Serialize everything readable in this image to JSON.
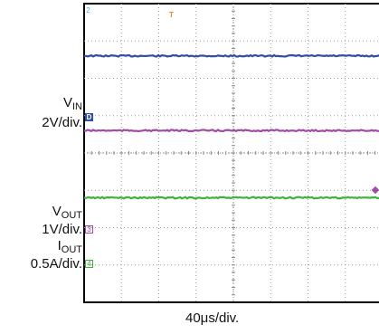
{
  "chart_data": {
    "type": "line",
    "title": "",
    "xlabel": "40μs/div",
    "x_divisions": 8,
    "y_divisions": 8,
    "grid": true,
    "series": [
      {
        "name": "VIN",
        "channel": "D",
        "scale": "2V/div.",
        "color": "#2e4fa3",
        "level_div": 6.6
      },
      {
        "name": "",
        "channel": "",
        "scale": "",
        "color": "#a24aa8",
        "level_div": 4.6
      },
      {
        "name": "VOUT",
        "channel": "3",
        "scale": "1V/div.",
        "color": "#3cb43c",
        "level_div": 2.8
      }
    ]
  },
  "labels": {
    "vin_main": "V",
    "vin_sub": "IN",
    "vin_scale": "2V/div.",
    "vout_main": "V",
    "vout_sub": "OUT",
    "vout_scale": "1V/div.",
    "iout_main": "I",
    "iout_sub": "OUT",
    "iout_scale": "0.5A/div.",
    "x_caption": "40μs/div."
  },
  "markers": {
    "top_channel": "2",
    "trigger": "T",
    "vin_channel": "D",
    "vout_channel": "3",
    "iout_channel": "4"
  },
  "colors": {
    "vin_trace": "#2e4fa3",
    "mid_trace": "#a24aa8",
    "vout_trace": "#3cb43c",
    "trigger_marker": "#e08a2c",
    "channel2_marker": "#52b6c9",
    "channel4_marker": "#3cb43c"
  }
}
